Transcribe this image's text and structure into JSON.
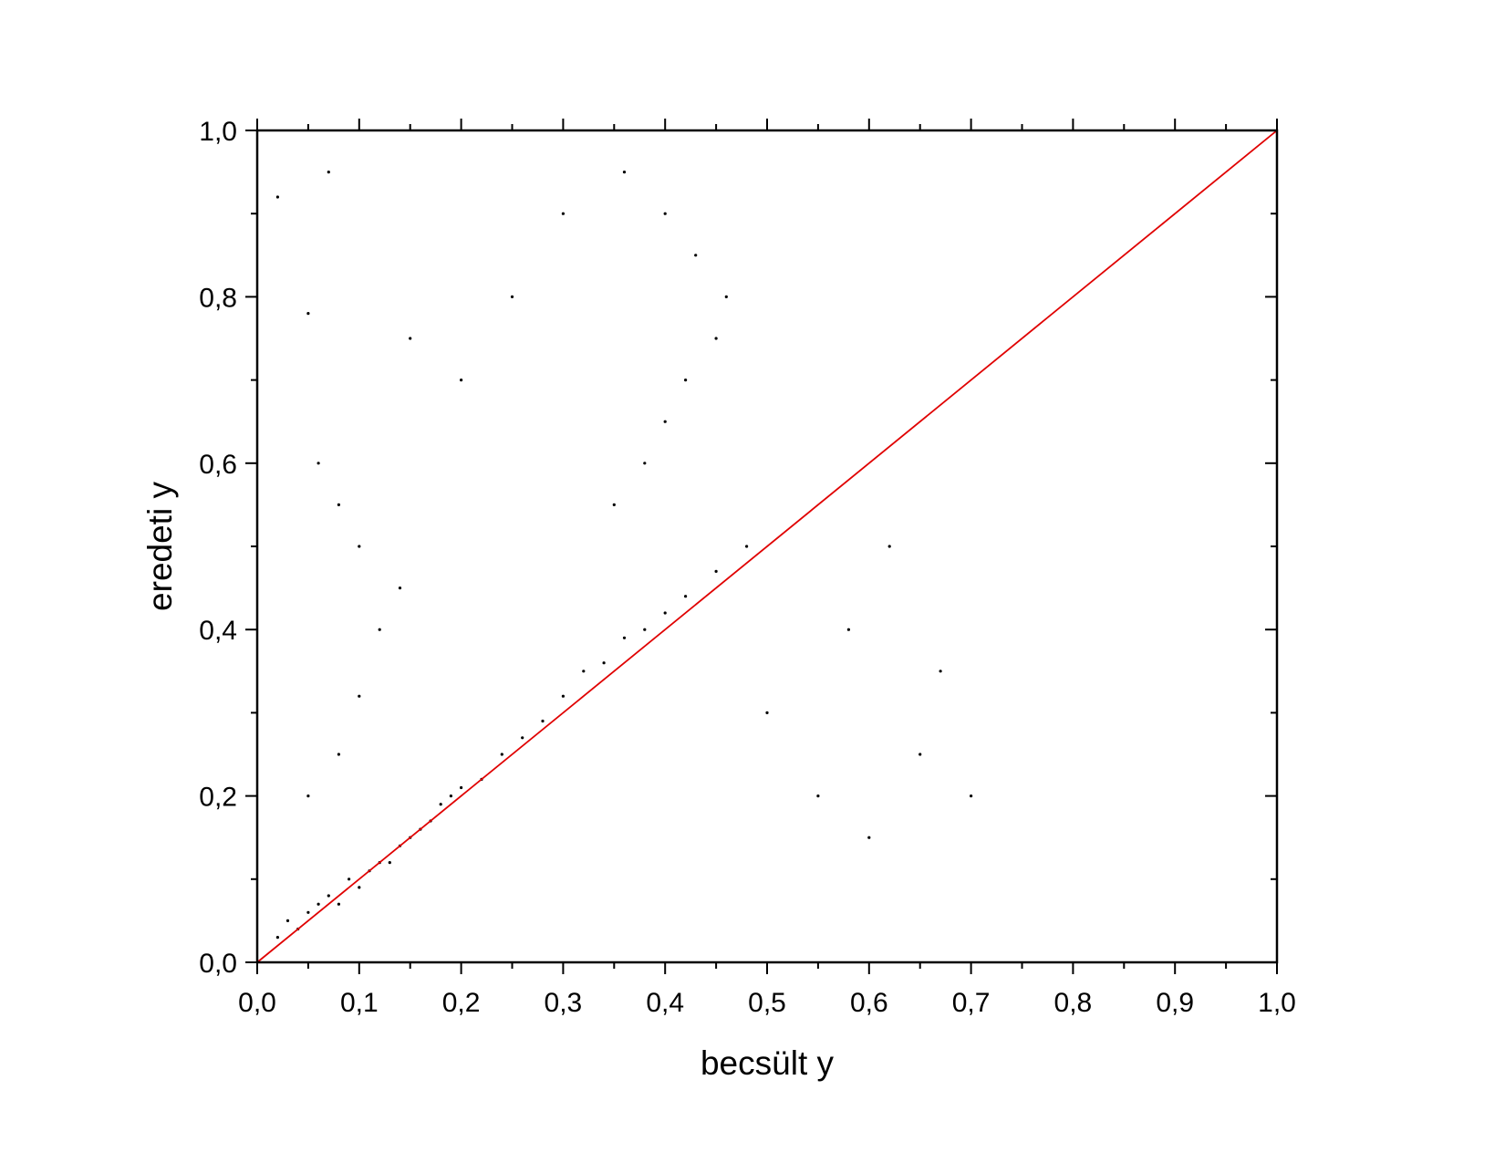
{
  "chart_data": {
    "type": "scatter",
    "title": "",
    "xlabel": "becsült y",
    "ylabel": "eredeti y",
    "xlim": [
      0,
      1
    ],
    "ylim": [
      0,
      1
    ],
    "grid": false,
    "legend": "none",
    "x_ticks": [
      {
        "value": 0.0,
        "label": "0,0"
      },
      {
        "value": 0.1,
        "label": "0,1"
      },
      {
        "value": 0.2,
        "label": "0,2"
      },
      {
        "value": 0.3,
        "label": "0,3"
      },
      {
        "value": 0.4,
        "label": "0,4"
      },
      {
        "value": 0.5,
        "label": "0,5"
      },
      {
        "value": 0.6,
        "label": "0,6"
      },
      {
        "value": 0.7,
        "label": "0,7"
      },
      {
        "value": 0.8,
        "label": "0,8"
      },
      {
        "value": 0.9,
        "label": "0,9"
      },
      {
        "value": 1.0,
        "label": "1,0"
      }
    ],
    "y_ticks": [
      {
        "value": 0.0,
        "label": "0,0"
      },
      {
        "value": 0.2,
        "label": "0,2"
      },
      {
        "value": 0.4,
        "label": "0,4"
      },
      {
        "value": 0.6,
        "label": "0,6"
      },
      {
        "value": 0.8,
        "label": "0,8"
      },
      {
        "value": 1.0,
        "label": "1,0"
      }
    ],
    "point_color": "#000000",
    "reference_line": {
      "x": [
        0,
        1
      ],
      "y": [
        0,
        1
      ],
      "color": "#e00000"
    },
    "series": [
      {
        "points": [
          [
            0.02,
            0.03
          ],
          [
            0.03,
            0.05
          ],
          [
            0.04,
            0.04
          ],
          [
            0.05,
            0.06
          ],
          [
            0.06,
            0.07
          ],
          [
            0.07,
            0.08
          ],
          [
            0.08,
            0.07
          ],
          [
            0.09,
            0.1
          ],
          [
            0.1,
            0.09
          ],
          [
            0.11,
            0.11
          ],
          [
            0.12,
            0.12
          ],
          [
            0.13,
            0.12
          ],
          [
            0.14,
            0.14
          ],
          [
            0.15,
            0.15
          ],
          [
            0.16,
            0.16
          ],
          [
            0.17,
            0.17
          ],
          [
            0.18,
            0.19
          ],
          [
            0.19,
            0.2
          ],
          [
            0.2,
            0.21
          ],
          [
            0.22,
            0.22
          ],
          [
            0.24,
            0.25
          ],
          [
            0.26,
            0.27
          ],
          [
            0.28,
            0.29
          ],
          [
            0.3,
            0.32
          ],
          [
            0.32,
            0.35
          ],
          [
            0.34,
            0.36
          ],
          [
            0.36,
            0.39
          ],
          [
            0.38,
            0.4
          ],
          [
            0.4,
            0.42
          ],
          [
            0.42,
            0.44
          ],
          [
            0.45,
            0.47
          ],
          [
            0.48,
            0.5
          ],
          [
            0.05,
            0.2
          ],
          [
            0.08,
            0.25
          ],
          [
            0.1,
            0.32
          ],
          [
            0.12,
            0.4
          ],
          [
            0.14,
            0.45
          ],
          [
            0.08,
            0.55
          ],
          [
            0.06,
            0.6
          ],
          [
            0.1,
            0.5
          ],
          [
            0.35,
            0.55
          ],
          [
            0.38,
            0.6
          ],
          [
            0.4,
            0.65
          ],
          [
            0.42,
            0.7
          ],
          [
            0.45,
            0.75
          ],
          [
            0.46,
            0.8
          ],
          [
            0.43,
            0.85
          ],
          [
            0.4,
            0.9
          ],
          [
            0.36,
            0.95
          ],
          [
            0.3,
            0.9
          ],
          [
            0.25,
            0.8
          ],
          [
            0.2,
            0.7
          ],
          [
            0.15,
            0.75
          ],
          [
            0.5,
            0.3
          ],
          [
            0.55,
            0.2
          ],
          [
            0.6,
            0.15
          ],
          [
            0.65,
            0.25
          ],
          [
            0.7,
            0.2
          ],
          [
            0.58,
            0.4
          ],
          [
            0.62,
            0.5
          ],
          [
            0.67,
            0.35
          ],
          [
            0.02,
            0.92
          ],
          [
            0.07,
            0.95
          ],
          [
            0.05,
            0.78
          ]
        ]
      }
    ]
  }
}
